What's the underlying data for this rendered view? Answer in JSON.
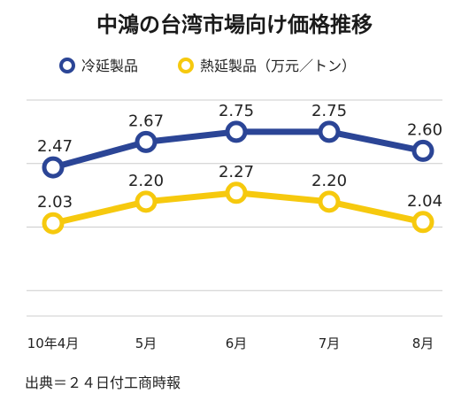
{
  "chart_data": {
    "type": "line",
    "title": "中鴻の台湾市場向け価格推移",
    "categories": [
      "10年4月",
      "5月",
      "6月",
      "7月",
      "8月"
    ],
    "series": [
      {
        "name": "冷延製品",
        "values": [
          2.47,
          2.67,
          2.75,
          2.75,
          2.6
        ],
        "labels": [
          "2.47",
          "2.67",
          "2.75",
          "2.75",
          "2.60"
        ],
        "color": "#2b4596"
      },
      {
        "name": "熱延製品（万元／トン）",
        "values": [
          2.03,
          2.2,
          2.27,
          2.2,
          2.04
        ],
        "labels": [
          "2.03",
          "2.20",
          "2.27",
          "2.20",
          "2.04"
        ],
        "color": "#f6c90e"
      }
    ],
    "ylim": [
      1.3,
      3.0
    ],
    "xlabel": "",
    "ylabel": "",
    "grid": true,
    "legend_position": "top",
    "gridline_color": "#cccccc"
  },
  "source": "出典＝２４日付工商時報"
}
